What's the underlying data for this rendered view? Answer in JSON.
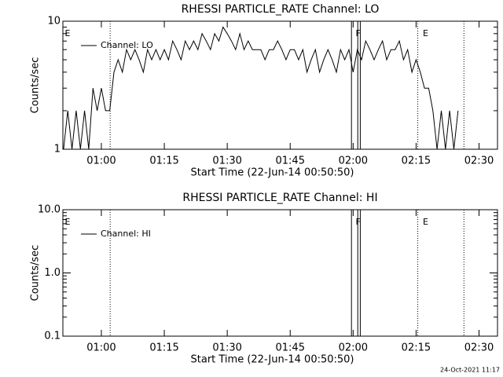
{
  "chart_data": [
    {
      "type": "line",
      "title": "RHESSI PARTICLE_RATE Channel: LO",
      "xlabel": "Start Time (22-Jun-14 00:50:50)",
      "ylabel": "Counts/sec",
      "xlim": [
        50.83,
        154.4
      ],
      "xticks": [
        {
          "value": 60,
          "label": "01:00"
        },
        {
          "value": 75,
          "label": "01:15"
        },
        {
          "value": 90,
          "label": "01:30"
        },
        {
          "value": 105,
          "label": "01:45"
        },
        {
          "value": 120,
          "label": "02:00"
        },
        {
          "value": 135,
          "label": "02:15"
        },
        {
          "value": 150,
          "label": "02:30"
        }
      ],
      "ylim": [
        1,
        10
      ],
      "yticks": [
        10,
        1
      ],
      "yminorticks": [
        2,
        3,
        4,
        5,
        6,
        7,
        8,
        9
      ],
      "log_y": true,
      "legend": "upper left",
      "markers": [
        {
          "x": 62.1,
          "style": "dotted"
        },
        {
          "x": 119.6,
          "style": "solid"
        },
        {
          "x": 121.1,
          "style": "solid"
        },
        {
          "x": 121.7,
          "style": "solid"
        },
        {
          "x": 135.4,
          "style": "dotted"
        },
        {
          "x": 146.4,
          "style": "dotted"
        }
      ],
      "flags": [
        {
          "x": 51.3,
          "label": "E"
        },
        {
          "x": 120.6,
          "label": "F"
        },
        {
          "x": 136.6,
          "label": "E"
        }
      ],
      "series": [
        {
          "name": "Channel: LO",
          "color": "#000000",
          "x": [
            51,
            52,
            53,
            54,
            55,
            56,
            57,
            58,
            59,
            60,
            61,
            62,
            63,
            64,
            65,
            66,
            67,
            68,
            69,
            70,
            71,
            72,
            73,
            74,
            75,
            76,
            77,
            78,
            79,
            80,
            81,
            82,
            83,
            84,
            85,
            86,
            87,
            88,
            89,
            90,
            91,
            92,
            93,
            94,
            95,
            96,
            97,
            98,
            99,
            100,
            101,
            102,
            103,
            104,
            105,
            106,
            107,
            108,
            109,
            110,
            111,
            112,
            113,
            114,
            115,
            116,
            117,
            118,
            119,
            120,
            121,
            122,
            123,
            124,
            125,
            126,
            127,
            128,
            129,
            130,
            131,
            132,
            133,
            134,
            135,
            136,
            137,
            138,
            139,
            140,
            141,
            142,
            143,
            144,
            145
          ],
          "values": [
            1,
            2,
            1,
            2,
            1,
            2,
            1,
            3,
            2,
            3,
            2,
            2,
            4,
            5,
            4,
            6,
            5,
            6,
            5,
            4,
            6,
            5,
            6,
            5,
            6,
            5,
            7,
            6,
            5,
            7,
            6,
            7,
            6,
            8,
            7,
            6,
            8,
            7,
            9,
            8,
            7,
            6,
            8,
            6,
            7,
            6,
            6,
            6,
            5,
            6,
            6,
            7,
            6,
            5,
            6,
            6,
            5,
            6,
            4,
            5,
            6,
            4,
            5,
            6,
            5,
            4,
            6,
            5,
            6,
            4,
            6,
            5,
            7,
            6,
            5,
            6,
            7,
            5,
            6,
            6,
            7,
            5,
            6,
            4,
            5,
            4,
            3,
            3,
            2,
            1,
            2,
            1,
            2,
            1,
            2
          ]
        }
      ]
    },
    {
      "type": "line",
      "title": "RHESSI PARTICLE_RATE Channel: HI",
      "xlabel": "Start Time (22-Jun-14 00:50:50)",
      "ylabel": "Counts/sec",
      "xlim": [
        50.83,
        154.4
      ],
      "xticks": [
        {
          "value": 60,
          "label": "01:00"
        },
        {
          "value": 75,
          "label": "01:15"
        },
        {
          "value": 90,
          "label": "01:30"
        },
        {
          "value": 105,
          "label": "01:45"
        },
        {
          "value": 120,
          "label": "02:00"
        },
        {
          "value": 135,
          "label": "02:15"
        },
        {
          "value": 150,
          "label": "02:30"
        }
      ],
      "ylim": [
        0.1,
        10
      ],
      "yticks": [
        {
          "value": 10,
          "label": "10.0"
        },
        {
          "value": 1,
          "label": "1.0"
        },
        0.1
      ],
      "yminorticks": [
        0.2,
        0.3,
        0.4,
        0.5,
        0.6,
        0.7,
        0.8,
        0.9,
        2,
        3,
        4,
        5,
        6,
        7,
        8,
        9
      ],
      "log_y": true,
      "legend": "upper left",
      "markers": [
        {
          "x": 62.1,
          "style": "dotted"
        },
        {
          "x": 119.6,
          "style": "solid"
        },
        {
          "x": 121.1,
          "style": "solid"
        },
        {
          "x": 121.7,
          "style": "solid"
        },
        {
          "x": 135.4,
          "style": "dotted"
        },
        {
          "x": 146.4,
          "style": "dotted"
        }
      ],
      "flags": [
        {
          "x": 51.3,
          "label": "E"
        },
        {
          "x": 120.6,
          "label": "F"
        },
        {
          "x": 136.6,
          "label": "E"
        }
      ],
      "series": [
        {
          "name": "Channel: HI",
          "color": "#000000",
          "x": [],
          "values": []
        }
      ]
    }
  ],
  "timestamp": "24-Oct-2021 11:17"
}
